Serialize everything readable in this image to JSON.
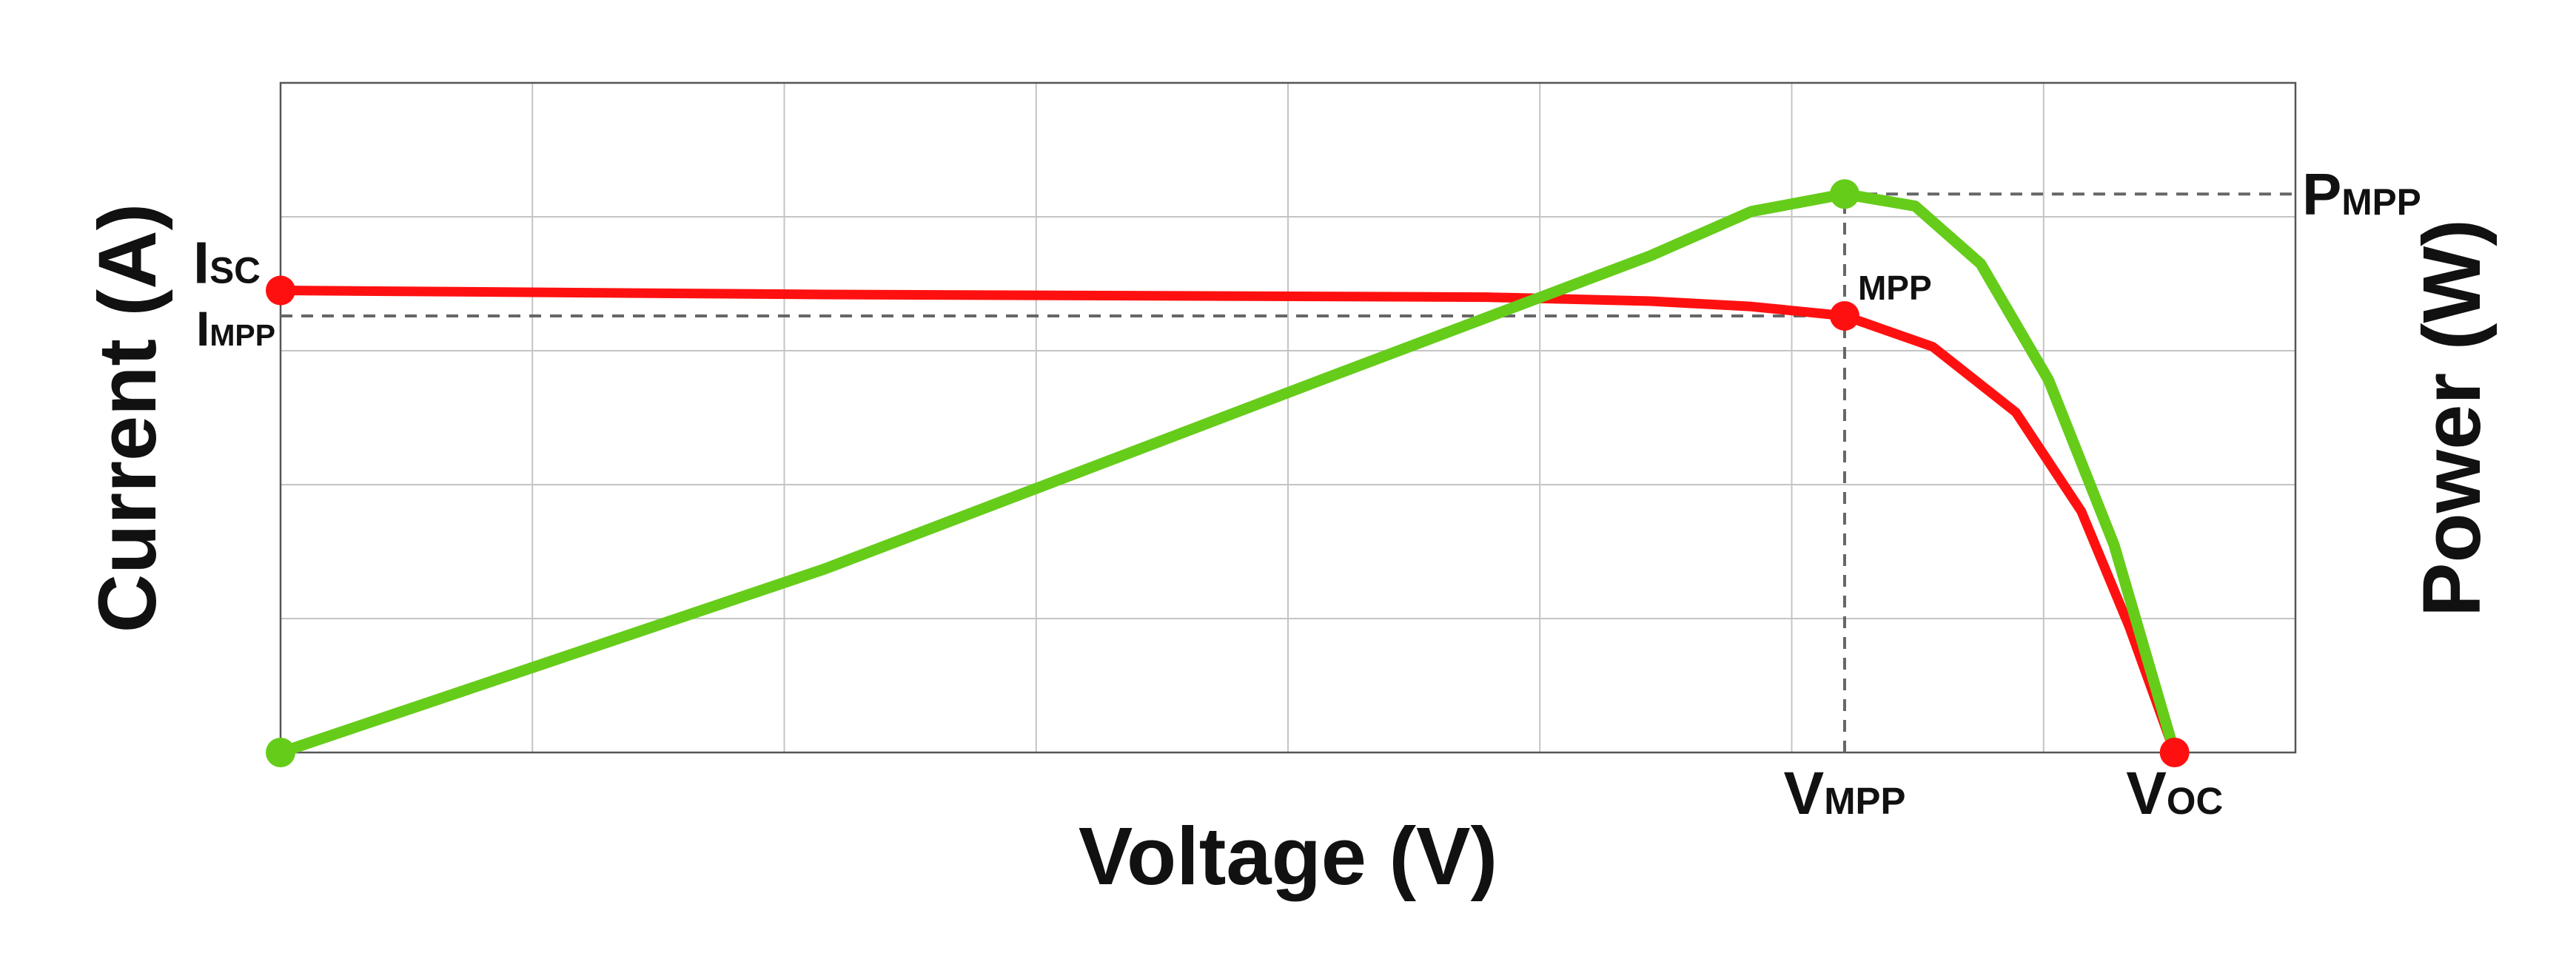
{
  "chart_data": {
    "type": "line",
    "xlabel": "Voltage (V)",
    "ylabel": "Current (A)",
    "y2label": "Power (W)",
    "xlim": [
      0,
      8
    ],
    "ylim": [
      0,
      5
    ],
    "y2lim": [
      0,
      5
    ],
    "xticks": [
      0,
      1,
      2,
      3,
      4,
      5,
      6,
      7,
      8
    ],
    "yticks": [
      0,
      1,
      2,
      3,
      4,
      5
    ],
    "tick_labels": false,
    "grid": true,
    "series": [
      {
        "color": "#ff1010",
        "x": [
          0,
          2.16,
          4.79,
          5.44,
          5.84,
          6.21,
          6.56,
          6.89,
          7.15,
          7.34,
          7.52
        ],
        "values": [
          3.45,
          3.42,
          3.4,
          3.37,
          3.33,
          3.26,
          3.03,
          2.54,
          1.8,
          0.94,
          0
        ],
        "markers": [
          0,
          5,
          10
        ]
      },
      {
        "color": "#66cc1a",
        "axis": "y2",
        "x": [
          0,
          2.16,
          4.13,
          5.44,
          5.84,
          6.21,
          6.49,
          6.75,
          7.02,
          7.28,
          7.52
        ],
        "values": [
          0,
          1.37,
          2.78,
          3.71,
          4.04,
          4.17,
          4.08,
          3.65,
          2.78,
          1.55,
          0
        ],
        "markers": [
          0,
          5
        ]
      }
    ],
    "x_marks": [
      {
        "value": 6.21,
        "label": "V",
        "sub": "MPP"
      },
      {
        "value": 7.52,
        "label": "V",
        "sub": "OC"
      }
    ],
    "y_marks": [
      {
        "value": 3.45,
        "label": "I",
        "sub": "SC"
      },
      {
        "value": 3.26,
        "label": "I",
        "sub": "MPP"
      }
    ],
    "y2_marks": [
      {
        "value": 4.17,
        "label": "P",
        "sub": "MPP"
      }
    ],
    "point_label": "MPP"
  }
}
